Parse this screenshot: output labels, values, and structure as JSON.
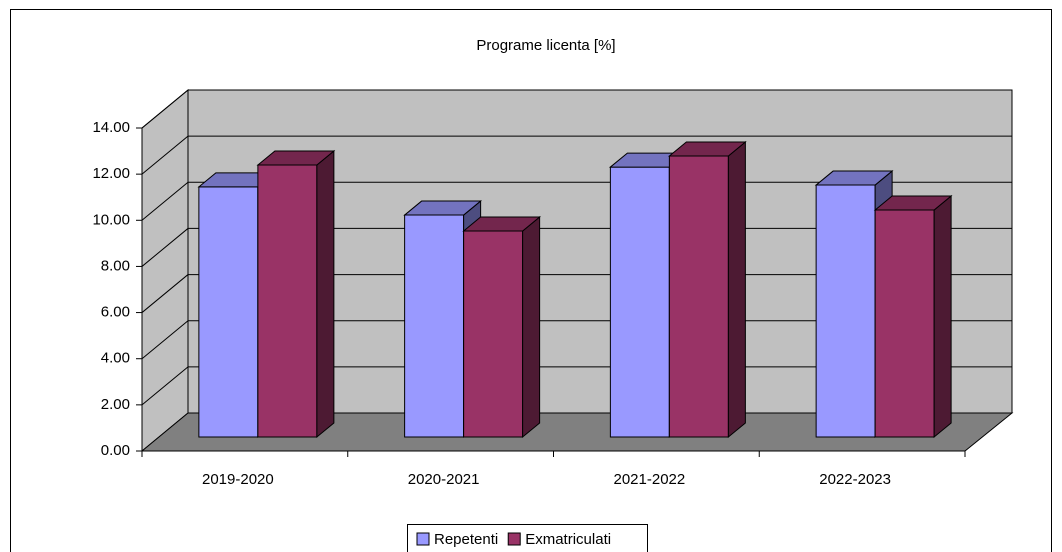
{
  "chart_data": {
    "type": "bar3d",
    "title": "Programe licenta [%]",
    "categories": [
      "2019-2020",
      "2020-2021",
      "2021-2022",
      "2022-2023"
    ],
    "series": [
      {
        "name": "Repetenti",
        "color": "#9999ff",
        "values": [
          10.84,
          9.62,
          11.7,
          10.92
        ]
      },
      {
        "name": "Exmatriculati",
        "color": "#993366",
        "values": [
          11.79,
          8.93,
          12.18,
          9.84
        ]
      }
    ],
    "ylim": [
      0,
      14
    ],
    "yticks": [
      {
        "value": 0,
        "label": "0.00"
      },
      {
        "value": 2,
        "label": "2.00"
      },
      {
        "value": 4,
        "label": "4.00"
      },
      {
        "value": 6,
        "label": "6.00"
      },
      {
        "value": 8,
        "label": "8.00"
      },
      {
        "value": 10,
        "label": "10.00"
      },
      {
        "value": 12,
        "label": "12.00"
      },
      {
        "value": 14,
        "label": "14.00"
      }
    ],
    "grid": true,
    "legend": "bottom"
  }
}
